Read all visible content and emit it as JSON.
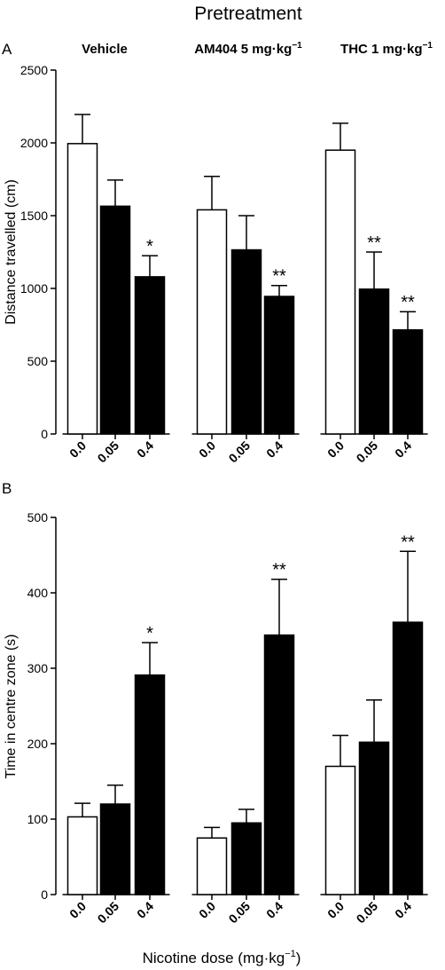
{
  "figure": {
    "title": "Pretreatment",
    "xlabel": "Nicotine dose (mg·kg",
    "xlabel_sup": "−1",
    "xlabel_end": ")"
  },
  "chart_data": [
    {
      "type": "bar",
      "panel_label": "A",
      "ylabel": "Distance travelled (cm)",
      "ylim": [
        0,
        2500
      ],
      "yticks": [
        0,
        500,
        1000,
        1500,
        2000,
        2500
      ],
      "groups": [
        {
          "name": "Vehicle",
          "name_sup": "",
          "categories": [
            "0.0",
            "0.05",
            "0.4"
          ],
          "values": [
            1995,
            1565,
            1080
          ],
          "errors": [
            200,
            180,
            145
          ],
          "fills": [
            "#ffffff",
            "#000000",
            "#000000"
          ],
          "sig": [
            "",
            "",
            "*"
          ]
        },
        {
          "name": "AM404 5 mg·kg",
          "name_sup": "−1",
          "categories": [
            "0.0",
            "0.05",
            "0.4"
          ],
          "values": [
            1540,
            1265,
            945
          ],
          "errors": [
            230,
            235,
            75
          ],
          "fills": [
            "#ffffff",
            "#000000",
            "#000000"
          ],
          "sig": [
            "",
            "",
            "**"
          ]
        },
        {
          "name": "THC 1 mg·kg",
          "name_sup": "−1",
          "categories": [
            "0.0",
            "0.05",
            "0.4"
          ],
          "values": [
            1950,
            995,
            715
          ],
          "errors": [
            185,
            255,
            125
          ],
          "fills": [
            "#ffffff",
            "#000000",
            "#000000"
          ],
          "sig": [
            "",
            "**",
            "**"
          ]
        }
      ]
    },
    {
      "type": "bar",
      "panel_label": "B",
      "ylabel": "Time in centre zone (s)",
      "ylim": [
        0,
        500
      ],
      "yticks": [
        0,
        100,
        200,
        300,
        400,
        500
      ],
      "ytick_labels": [
        "0",
        "100",
        "200",
        "300",
        "400",
        "500"
      ],
      "groups": [
        {
          "name": "",
          "categories": [
            "0.0",
            "0.05",
            "0.4"
          ],
          "values": [
            103,
            120,
            291
          ],
          "errors": [
            18,
            25,
            43
          ],
          "fills": [
            "#ffffff",
            "#000000",
            "#000000"
          ],
          "sig": [
            "",
            "",
            "*"
          ]
        },
        {
          "name": "",
          "categories": [
            "0.0",
            "0.05",
            "0.4"
          ],
          "values": [
            75,
            95,
            344
          ],
          "errors": [
            14,
            18,
            74
          ],
          "fills": [
            "#ffffff",
            "#000000",
            "#000000"
          ],
          "sig": [
            "",
            "",
            "**"
          ]
        },
        {
          "name": "",
          "categories": [
            "0.0",
            "0.05",
            "0.4"
          ],
          "values": [
            170,
            202,
            361
          ],
          "errors": [
            41,
            56,
            94
          ],
          "fills": [
            "#ffffff",
            "#000000",
            "#000000"
          ],
          "sig": [
            "",
            "",
            "**"
          ]
        }
      ]
    }
  ]
}
